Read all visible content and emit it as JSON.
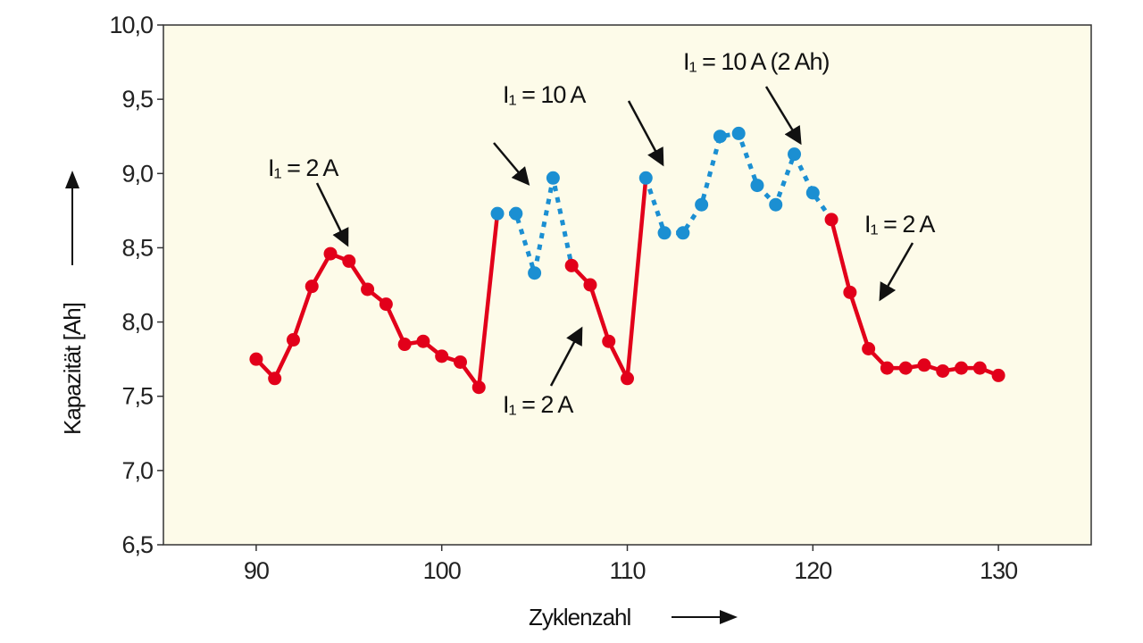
{
  "chart_data": {
    "type": "line",
    "title": "",
    "xlabel": "Zyklenzahl",
    "ylabel": "Kapazität [Ah]",
    "xlim": [
      85,
      135
    ],
    "ylim": [
      6.5,
      10.0
    ],
    "xticks": [
      90,
      100,
      110,
      120,
      130
    ],
    "xtick_labels": [
      "90",
      "100",
      "110",
      "120",
      "130"
    ],
    "yticks": [
      6.5,
      7.0,
      7.5,
      8.0,
      8.5,
      9.0,
      9.5,
      10.0
    ],
    "ytick_labels": [
      "6,5",
      "7,0",
      "7,5",
      "8,0",
      "8,5",
      "9,0",
      "9,5",
      "10,0"
    ],
    "grid": false,
    "colors": {
      "red": "#e2001a",
      "blue": "#1b8fd2",
      "plot_bg": "#fdfbe9"
    },
    "series": [
      {
        "name": "I1 = 2 A (a)",
        "style": "solid",
        "color": "red",
        "x": [
          90,
          91,
          92,
          93,
          94,
          95,
          96,
          97,
          98,
          99,
          100,
          101,
          102,
          103
        ],
        "y": [
          7.75,
          7.62,
          7.88,
          8.24,
          8.46,
          8.41,
          8.22,
          8.12,
          7.85,
          7.87,
          7.77,
          7.73,
          7.56,
          8.73
        ],
        "markers_until": 102
      },
      {
        "name": "I1 = 10 A (a)",
        "style": "dotted",
        "color": "blue",
        "x": [
          103,
          104,
          105,
          106,
          107
        ],
        "y": [
          8.73,
          8.73,
          8.33,
          8.97,
          8.38
        ],
        "markers_until": 106
      },
      {
        "name": "I1 = 2 A (b)",
        "style": "solid",
        "color": "red",
        "x": [
          107,
          108,
          109,
          110,
          111
        ],
        "y": [
          8.38,
          8.25,
          7.87,
          7.62,
          8.97
        ],
        "markers_until": 110
      },
      {
        "name": "I1 = 10 A (b)",
        "style": "dotted",
        "color": "blue",
        "x": [
          111,
          112,
          113,
          114,
          115,
          116,
          117,
          118,
          119,
          120,
          121
        ],
        "y": [
          8.97,
          8.6,
          8.6,
          8.79,
          9.25,
          9.27,
          8.92,
          8.79,
          9.13,
          8.87,
          8.69
        ],
        "markers_until": 120
      },
      {
        "name": "I1 = 2 A (c)",
        "style": "solid",
        "color": "red",
        "x": [
          121,
          122,
          123,
          124,
          125,
          126,
          127,
          128,
          129,
          130
        ],
        "y": [
          8.69,
          8.2,
          7.82,
          7.69,
          7.69,
          7.71,
          7.67,
          7.69,
          7.69,
          7.64
        ],
        "markers_until": 130
      }
    ],
    "annotations": [
      {
        "text": "I₁ = 2 A"
      },
      {
        "text": "I₁ = 10 A"
      },
      {
        "text": "I₁ = 10 A (2 Ah)"
      },
      {
        "text": "I₁ = 2 A"
      },
      {
        "text": "I₁ = 2 A"
      }
    ]
  }
}
